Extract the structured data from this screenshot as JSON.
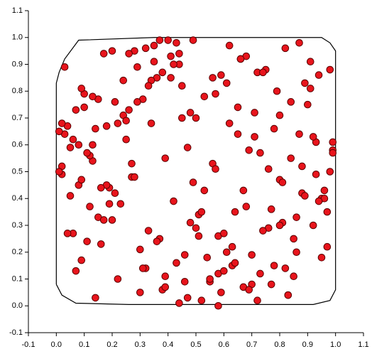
{
  "chart_data": {
    "type": "scatter",
    "x": [
      0.12,
      0.45,
      0.78,
      0.03,
      0.91,
      0.33,
      0.56,
      0.67,
      0.21,
      0.88,
      0.05,
      0.39,
      0.72,
      0.15,
      0.62,
      0.97,
      0.28,
      0.49,
      0.83,
      0.1,
      0.58,
      0.24,
      0.93,
      0.41,
      0.07,
      0.69,
      0.36,
      0.81,
      0.14,
      0.52,
      0.75,
      0.19,
      0.46,
      0.99,
      0.31,
      0.64,
      0.02,
      0.87,
      0.55,
      0.26,
      0.43,
      0.71,
      0.09,
      0.6,
      0.95,
      0.17,
      0.38,
      0.84,
      0.5,
      0.23,
      0.66,
      0.11,
      0.8,
      0.34,
      0.58,
      0.04,
      0.92,
      0.47,
      0.73,
      0.29,
      0.18,
      0.53,
      0.86,
      0.4,
      0.06,
      0.77,
      0.32,
      0.61,
      0.98,
      0.25,
      0.7,
      0.13,
      0.44,
      0.89,
      0.37,
      0.65,
      0.01,
      0.54,
      0.82,
      0.2,
      0.48,
      0.76,
      0.08,
      0.59,
      0.94,
      0.27,
      0.42,
      0.68,
      0.16,
      0.85,
      0.35,
      0.63,
      0.96,
      0.22,
      0.51,
      0.79,
      0.12,
      0.44,
      0.9,
      0.3,
      0.57,
      0.03,
      0.74,
      0.39,
      0.87,
      0.21,
      0.66,
      0.09,
      0.52,
      0.99,
      0.14,
      0.45,
      0.81,
      0.33,
      0.7,
      0.06,
      0.93,
      0.26,
      0.6,
      0.41,
      0.78,
      0.19,
      0.55,
      0.02,
      0.84,
      0.37,
      0.63,
      0.11,
      0.96,
      0.48,
      0.24,
      0.69,
      0.07,
      0.51,
      0.88,
      0.31,
      0.74,
      0.16,
      0.43,
      0.92,
      0.61,
      0.35,
      0.97,
      0.13,
      0.46,
      0.8,
      0.28,
      0.57,
      0.04,
      0.72,
      0.39,
      0.86,
      0.2,
      0.64,
      0.1,
      0.53,
      0.91,
      0.34,
      0.77,
      0.01,
      0.5,
      0.15,
      0.83,
      0.42,
      0.68,
      0.25,
      0.95,
      0.08,
      0.59,
      0.32,
      0.73,
      0.47,
      0.05,
      0.89,
      0.36,
      0.62,
      0.18,
      0.8,
      0.27,
      0.98,
      0.44,
      0.09,
      0.71,
      0.3,
      0.56,
      0.94,
      0.22,
      0.65,
      0.13,
      0.85,
      0.02,
      0.58,
      0.38,
      0.76,
      0.17,
      0.49,
      0.82,
      0.29,
      0.67,
      0.99
    ],
    "y": [
      0.37,
      0.82,
      0.15,
      0.64,
      0.91,
      0.28,
      0.53,
      0.07,
      0.76,
      0.42,
      0.59,
      0.11,
      0.87,
      0.33,
      0.68,
      0.22,
      0.95,
      0.46,
      0.04,
      0.79,
      0.26,
      0.71,
      0.49,
      0.93,
      0.13,
      0.58,
      0.85,
      0.31,
      0.66,
      0.02,
      0.88,
      0.44,
      0.19,
      0.61,
      0.77,
      0.35,
      0.52,
      0.98,
      0.09,
      0.73,
      0.16,
      0.63,
      0.81,
      0.27,
      0.4,
      0.94,
      0.06,
      0.55,
      0.7,
      0.38,
      0.92,
      0.24,
      0.47,
      0.84,
      0.12,
      0.67,
      0.3,
      0.03,
      0.57,
      0.89,
      0.45,
      0.78,
      0.2,
      0.99,
      0.62,
      0.36,
      0.14,
      0.83,
      0.5,
      0.69,
      0.08,
      0.54,
      0.9,
      0.41,
      0.25,
      0.74,
      0.65,
      0.18,
      0.96,
      0.32,
      0.72,
      0.29,
      0.6,
      0.05,
      0.86,
      0.48,
      0.39,
      0.93,
      0.23,
      0.11,
      0.97,
      0.15,
      0.43,
      0.68,
      0.34,
      0.8,
      0.56,
      0.01,
      0.75,
      0.21,
      0.51,
      0.89,
      0.28,
      0.07,
      0.64,
      0.42,
      0.92,
      0.17,
      0.35,
      0.58,
      0.03,
      0.7,
      0.46,
      0.82,
      0.19,
      0.27,
      0.61,
      0.94,
      0.13,
      0.85,
      0.66,
      0.38,
      0.1,
      0.49,
      0.76,
      0.99,
      0.22,
      0.57,
      0.4,
      0.31,
      0.84,
      0.06,
      0.73,
      0.26,
      0.52,
      0.14,
      0.87,
      0.44,
      0.98,
      0.63,
      0.2,
      0.91,
      0.35,
      0.6,
      0.09,
      0.71,
      0.48,
      0.79,
      0.27,
      0.02,
      0.55,
      0.33,
      0.95,
      0.16,
      0.74,
      0.43,
      0.81,
      0.68,
      0.08,
      0.5,
      0.29,
      0.77,
      0.04,
      0.9,
      0.37,
      0.62,
      0.18,
      0.45,
      0.86,
      0.96,
      0.12,
      0.59,
      0.41,
      0.83,
      0.24,
      0.97,
      0.67,
      0.3,
      0.53,
      0.88,
      0.94,
      0.47,
      0.72,
      0.05,
      0.85,
      0.39,
      0.1,
      0.64,
      0.78,
      0.25,
      0.68,
      0.0,
      0.87,
      0.51,
      0.32,
      0.99,
      0.14,
      0.76,
      0.43,
      0.57
    ],
    "color": "#e8141c",
    "hull": {
      "x": [
        0.0,
        0.02,
        0.07,
        0.26,
        0.92,
        0.98,
        1.0,
        1.0,
        0.98,
        0.95,
        0.35,
        0.08,
        0.03,
        0.01,
        0.0,
        0.0
      ],
      "y": [
        0.08,
        0.04,
        0.01,
        0.005,
        0.005,
        0.02,
        0.06,
        0.95,
        0.98,
        1.0,
        1.0,
        0.99,
        0.92,
        0.87,
        0.83,
        0.08
      ],
      "color": "#000000"
    },
    "xlim": [
      -0.1,
      1.1
    ],
    "ylim": [
      -0.1,
      1.1
    ],
    "xticks": [
      -0.1,
      {
        "value": 0,
        "label": "0.0"
      },
      0.1,
      0.2,
      0.3,
      0.4,
      0.5,
      0.6,
      0.7,
      0.8,
      0.9,
      {
        "value": 1,
        "label": "1.0"
      },
      1.1
    ],
    "yticks": [
      -0.1,
      {
        "value": 0,
        "label": "0.0"
      },
      0.1,
      0.2,
      0.3,
      0.4,
      0.5,
      0.6,
      0.7,
      0.8,
      0.9,
      {
        "value": 1,
        "label": "1.0"
      },
      1.1
    ]
  }
}
